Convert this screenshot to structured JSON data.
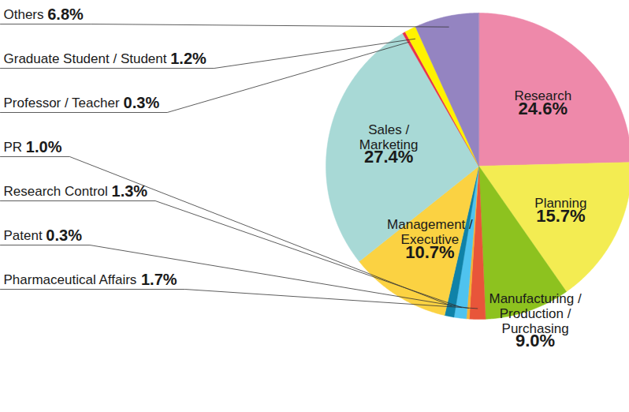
{
  "chart_data": {
    "type": "pie",
    "categories": [
      "Research",
      "Planning",
      "Manufacturing / Production / Purchasing",
      "Pharmaceutical Affairs",
      "Patent",
      "Research Control",
      "PR",
      "Management / Executive",
      "Sales / Marketing",
      "Professor / Teacher",
      "Graduate Student / Student",
      "Others"
    ],
    "values": [
      24.6,
      15.7,
      9.0,
      1.7,
      0.3,
      1.3,
      1.0,
      10.7,
      27.4,
      0.3,
      1.2,
      6.8
    ],
    "value_labels": [
      "24.6%",
      "15.7%",
      "9.0%",
      "1.7%",
      "0.3%",
      "1.3%",
      "1.0%",
      "10.7%",
      "27.4%",
      "0.3%",
      "1.2%",
      "6.8%"
    ],
    "colors": [
      "#ee89aa",
      "#f3ec52",
      "#8dc21f",
      "#e8553a",
      "#f5b335",
      "#4fc3ef",
      "#0f82a8",
      "#fbd242",
      "#a8d9d6",
      "#e8334a",
      "#fff200",
      "#9484c1"
    ],
    "data_labels": true
  }
}
